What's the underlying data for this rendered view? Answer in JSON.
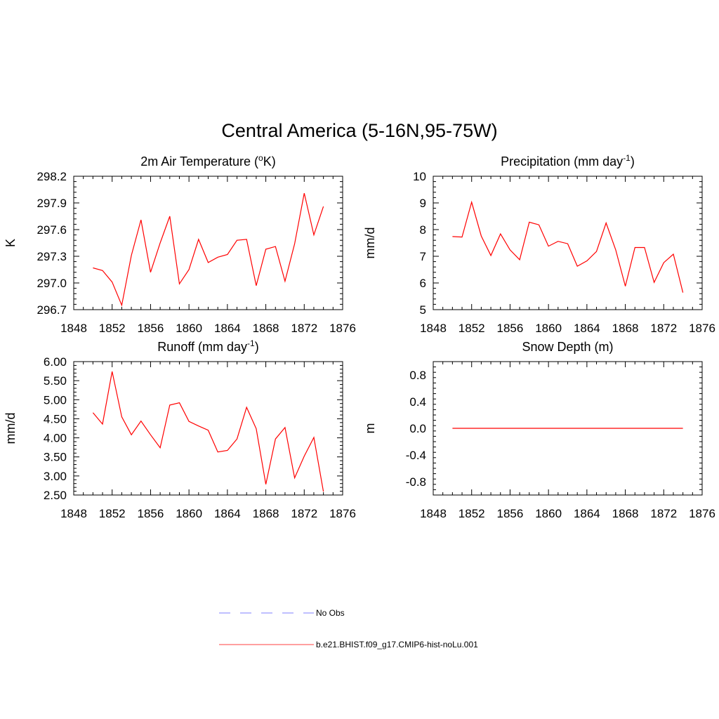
{
  "title": "Central America (5-16N,95-75W)",
  "colors": {
    "model": "#ff0000",
    "obs": "#9999ff",
    "axis": "#000000"
  },
  "legend": {
    "placement": "bottom-center",
    "entries": [
      {
        "label": "No Obs",
        "style": "dashed",
        "color": "#9999ff"
      },
      {
        "label": "b.e21.BHIST.f09_g17.CMIP6-hist-noLu.001",
        "style": "solid",
        "color": "#ff0000"
      }
    ]
  },
  "chart_data": [
    {
      "type": "line",
      "title": "2m Air Temperature (",
      "title_sup": "o",
      "title_rest": "K)",
      "ylabel": "K",
      "xlim": [
        1848,
        1876
      ],
      "ylim": [
        296.7,
        298.2
      ],
      "xticks": [
        "1848",
        "1852",
        "1856",
        "1860",
        "1864",
        "1868",
        "1872",
        "1876"
      ],
      "yticks": [
        "296.7",
        "297.0",
        "297.3",
        "297.6",
        "297.9",
        "298.2"
      ],
      "x": [
        1850,
        1851,
        1852,
        1853,
        1854,
        1855,
        1856,
        1857,
        1858,
        1859,
        1860,
        1861,
        1862,
        1863,
        1864,
        1865,
        1866,
        1867,
        1868,
        1869,
        1870,
        1871,
        1872,
        1873,
        1874
      ],
      "series": [
        {
          "name": "b.e21.BHIST.f09_g17.CMIP6-hist-noLu.001",
          "values": [
            297.17,
            297.14,
            297.01,
            296.75,
            297.31,
            297.71,
            297.12,
            297.45,
            297.75,
            296.99,
            297.15,
            297.49,
            297.23,
            297.29,
            297.32,
            297.48,
            297.49,
            296.97,
            297.38,
            297.41,
            297.02,
            297.44,
            298.01,
            297.54,
            297.86
          ]
        }
      ]
    },
    {
      "type": "line",
      "title": "Precipitation (mm day",
      "title_sup": "-1",
      "title_rest": ")",
      "ylabel": "mm/d",
      "xlim": [
        1848,
        1876
      ],
      "ylim": [
        5,
        10
      ],
      "xticks": [
        "1848",
        "1852",
        "1856",
        "1860",
        "1864",
        "1868",
        "1872",
        "1876"
      ],
      "yticks": [
        "5",
        "6",
        "7",
        "8",
        "9",
        "10"
      ],
      "x": [
        1850,
        1851,
        1852,
        1853,
        1854,
        1855,
        1856,
        1857,
        1858,
        1859,
        1860,
        1861,
        1862,
        1863,
        1864,
        1865,
        1866,
        1867,
        1868,
        1869,
        1870,
        1871,
        1872,
        1873,
        1874
      ],
      "series": [
        {
          "name": "b.e21.BHIST.f09_g17.CMIP6-hist-noLu.001",
          "values": [
            7.74,
            7.72,
            9.03,
            7.76,
            7.03,
            7.84,
            7.24,
            6.87,
            8.28,
            8.18,
            7.38,
            7.56,
            7.47,
            6.63,
            6.83,
            7.18,
            8.25,
            7.24,
            5.88,
            7.33,
            7.33,
            6.02,
            6.76,
            7.08,
            5.64
          ]
        }
      ]
    },
    {
      "type": "line",
      "title": "Runoff (mm day",
      "title_sup": "-1",
      "title_rest": ")",
      "ylabel": "mm/d",
      "xlim": [
        1848,
        1876
      ],
      "ylim": [
        2.5,
        6.0
      ],
      "xticks": [
        "1848",
        "1852",
        "1856",
        "1860",
        "1864",
        "1868",
        "1872",
        "1876"
      ],
      "yticks": [
        "2.50",
        "3.00",
        "3.50",
        "4.00",
        "4.50",
        "5.00",
        "5.50",
        "6.00"
      ],
      "x": [
        1850,
        1851,
        1852,
        1853,
        1854,
        1855,
        1856,
        1857,
        1858,
        1859,
        1860,
        1861,
        1862,
        1863,
        1864,
        1865,
        1866,
        1867,
        1868,
        1869,
        1870,
        1871,
        1872,
        1873,
        1874
      ],
      "series": [
        {
          "name": "b.e21.BHIST.f09_g17.CMIP6-hist-noLu.001",
          "values": [
            4.66,
            4.36,
            5.74,
            4.55,
            4.08,
            4.44,
            4.08,
            3.74,
            4.86,
            4.92,
            4.43,
            4.31,
            4.2,
            3.63,
            3.67,
            3.97,
            4.8,
            4.24,
            2.78,
            3.97,
            4.27,
            2.95,
            3.52,
            4.01,
            2.59
          ]
        }
      ]
    },
    {
      "type": "line",
      "title": "Snow Depth (m)",
      "title_sup": "",
      "title_rest": "",
      "ylabel": "m",
      "xlim": [
        1848,
        1876
      ],
      "ylim": [
        -1.0,
        1.0
      ],
      "xticks": [
        "1848",
        "1852",
        "1856",
        "1860",
        "1864",
        "1868",
        "1872",
        "1876"
      ],
      "yticks": [
        "-0.8",
        "-0.4",
        "0.0",
        "0.4",
        "0.8"
      ],
      "ytick_values": [
        -0.8,
        -0.4,
        0.0,
        0.4,
        0.8
      ],
      "x": [
        1850,
        1874
      ],
      "series": [
        {
          "name": "b.e21.BHIST.f09_g17.CMIP6-hist-noLu.001",
          "values": [
            0.0,
            0.0
          ]
        }
      ]
    }
  ]
}
